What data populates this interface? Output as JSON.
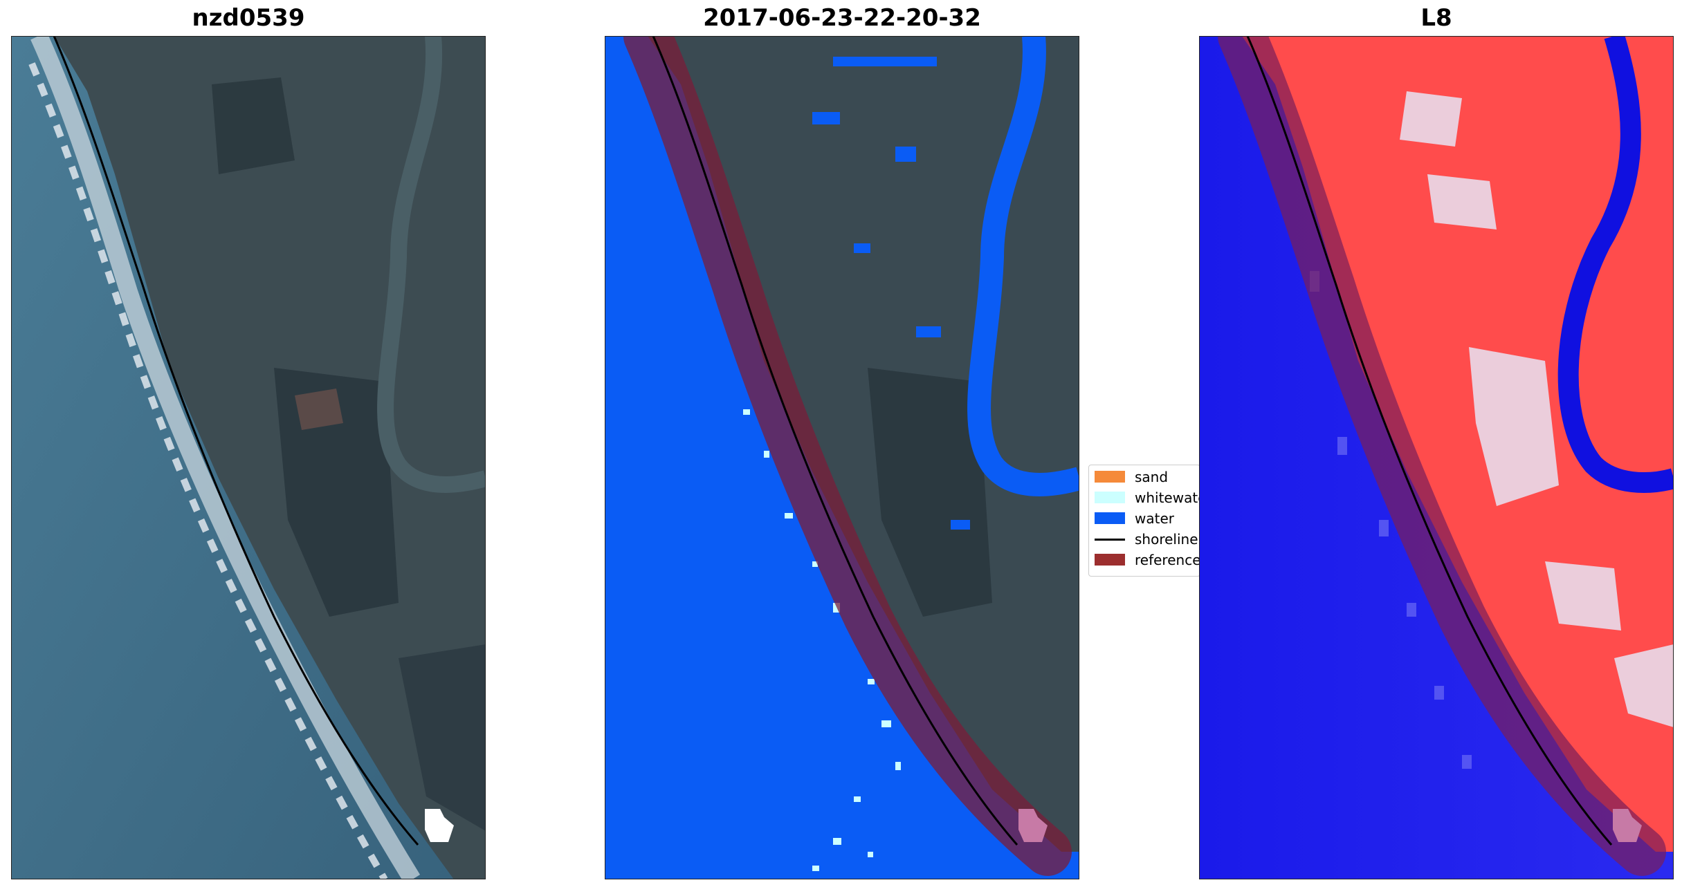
{
  "panels": [
    {
      "title": "nzd0539"
    },
    {
      "title": "2017-06-23-22-20-32"
    },
    {
      "title": "L8"
    }
  ],
  "legend": {
    "items": [
      {
        "label": "sand",
        "color": "#f58a3a",
        "kind": "patch"
      },
      {
        "label": "whitewater",
        "color": "#ccffff",
        "kind": "patch"
      },
      {
        "label": "water",
        "color": "#0a5cf5",
        "kind": "patch"
      },
      {
        "label": "shoreline",
        "color": "#000000",
        "kind": "line"
      },
      {
        "label": "reference shoreline buffer",
        "color": "#9c2e2e",
        "kind": "patch"
      }
    ]
  },
  "colors": {
    "ocean_rgb": "#3e6b86",
    "land_rgb": "#3a4a52",
    "surf": "#e8eef2",
    "class_water": "#0a5cf5",
    "class_whitewater": "#ccffff",
    "buffer": "#7a1e3a",
    "index_water": "#1515ee",
    "index_land": "#ff4a4a",
    "shoreline": "#000000"
  }
}
